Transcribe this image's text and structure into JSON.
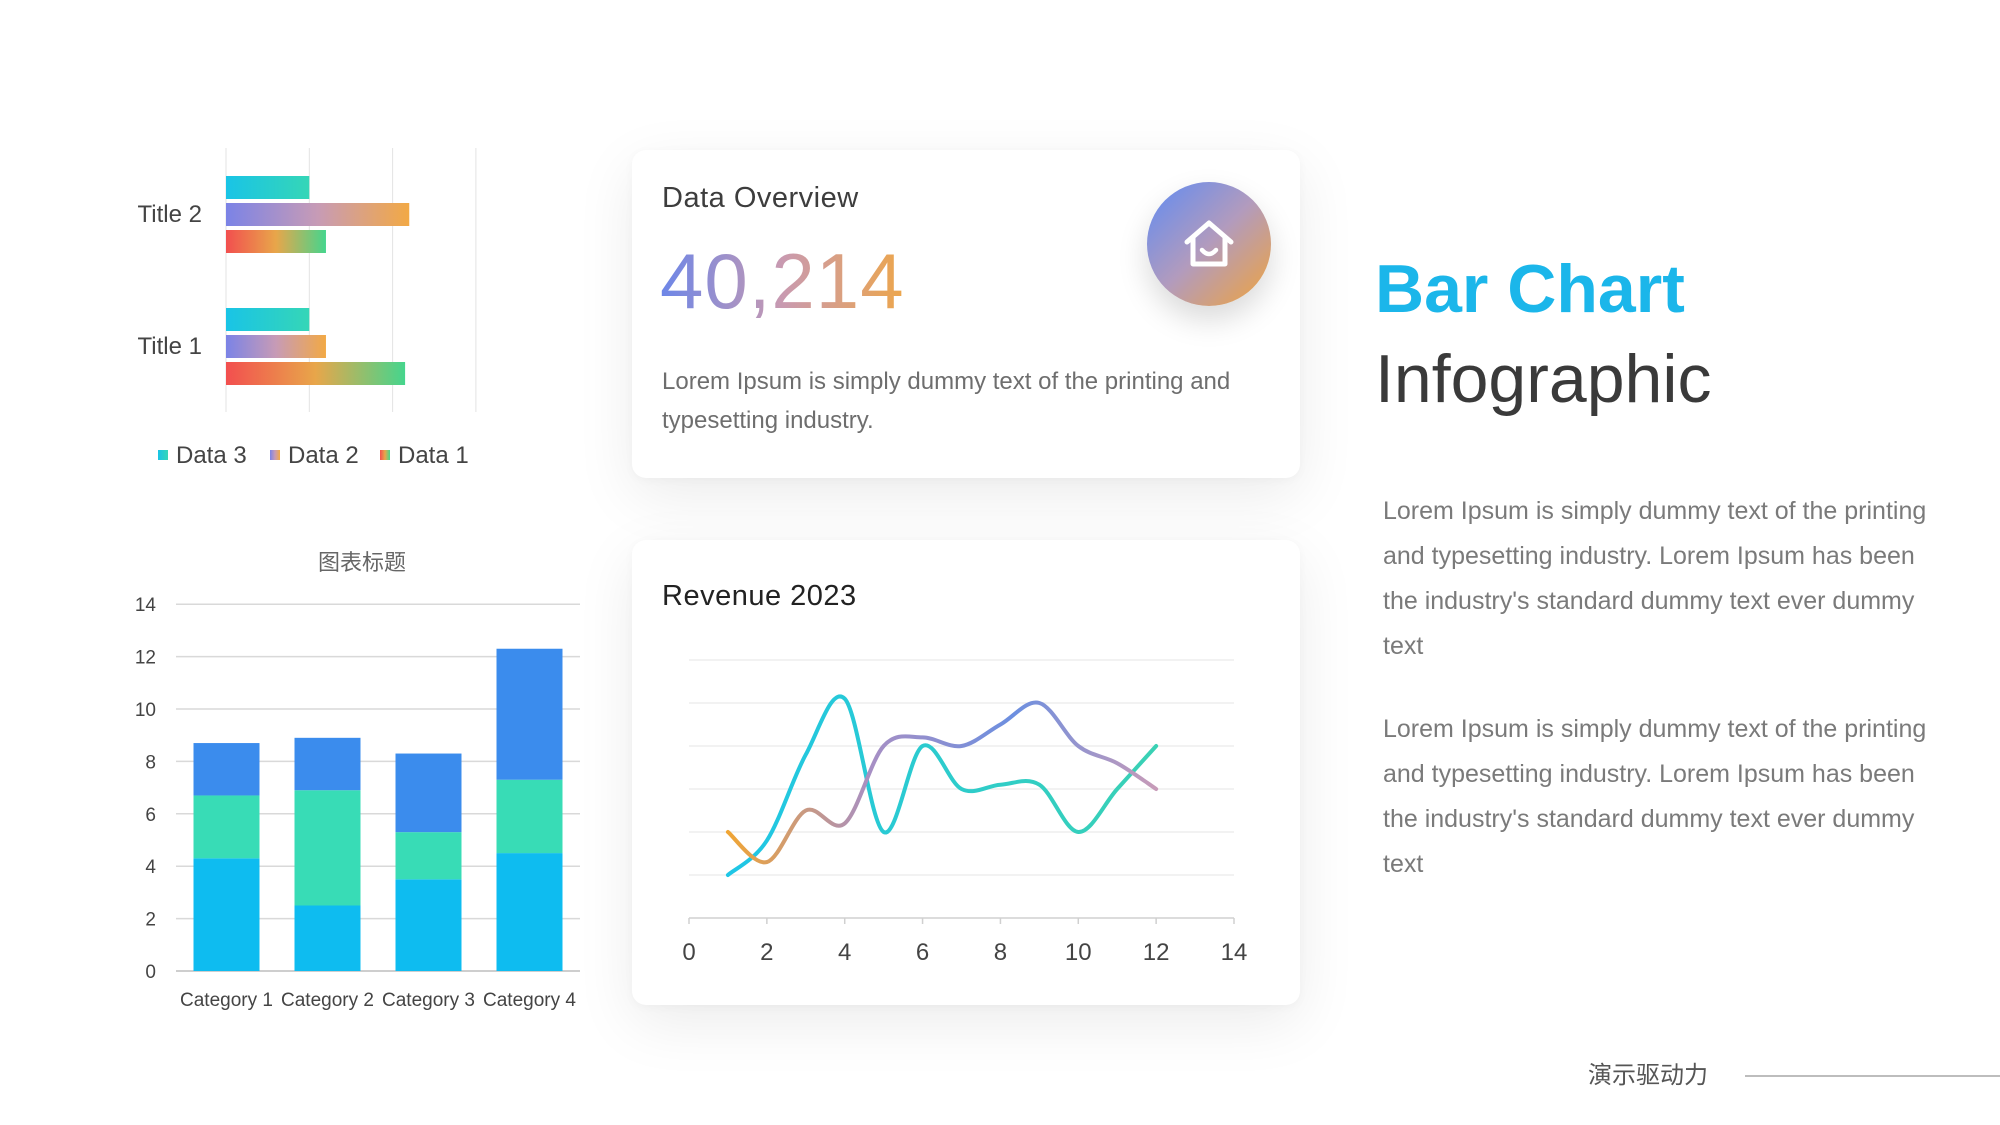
{
  "chart_data": [
    {
      "type": "bar",
      "orientation": "horizontal",
      "categories": [
        "Title 2",
        "Title 1"
      ],
      "series": [
        {
          "name": "Data 3",
          "values": [
            1.0,
            1.0
          ]
        },
        {
          "name": "Data 2",
          "values": [
            2.2,
            1.2
          ]
        },
        {
          "name": "Data 1",
          "values": [
            1.2,
            2.15
          ]
        }
      ],
      "xlim": [
        0,
        3
      ],
      "grid": true,
      "legend": "bottom"
    },
    {
      "type": "bar",
      "stacked": true,
      "title": "图表标题",
      "categories": [
        "Category 1",
        "Category 2",
        "Category 3",
        "Category 4"
      ],
      "series": [
        {
          "values": [
            4.3,
            2.5,
            3.5,
            4.5
          ],
          "color": "#0ebcf0"
        },
        {
          "values": [
            2.4,
            4.4,
            1.8,
            2.8
          ],
          "color": "#38dcb6"
        },
        {
          "values": [
            2.0,
            2.0,
            3.0,
            5.0
          ],
          "color": "#3b8ced"
        }
      ],
      "ylim": [
        0,
        14
      ],
      "yticks": [
        0,
        2,
        4,
        6,
        8,
        10,
        12,
        14
      ],
      "grid": true
    },
    {
      "type": "line",
      "title": "Revenue 2023",
      "xlim": [
        0,
        14
      ],
      "xticks": [
        0,
        2,
        4,
        6,
        8,
        10,
        12,
        14
      ],
      "ylim": [
        0,
        6
      ],
      "grid": true,
      "series": [
        {
          "x": [
            1,
            2,
            3,
            4,
            5,
            6,
            7,
            8,
            9,
            10,
            11,
            12
          ],
          "y": [
            1,
            1.8,
            3.8,
            5.1,
            2,
            4,
            3,
            3.1,
            3.1,
            2,
            3,
            4
          ],
          "colors": [
            "#1fc6e6",
            "#3ad1b4"
          ]
        },
        {
          "x": [
            1,
            2,
            3,
            4,
            5,
            6,
            7,
            8,
            9,
            10,
            11,
            12
          ],
          "y": [
            2,
            1.3,
            2.5,
            2.2,
            4,
            4.2,
            4,
            4.5,
            5,
            4,
            3.6,
            3
          ],
          "colors": [
            "#f0a534",
            "#a78fc4",
            "#6c8fe0",
            "#c79bb8"
          ]
        }
      ]
    }
  ],
  "overview": {
    "title": "Data Overview",
    "value": "40,214",
    "description": "Lorem Ipsum is simply dummy text of the printing and typesetting industry.",
    "icon": "home-icon"
  },
  "revenue": {
    "title": "Revenue 2023"
  },
  "headline": {
    "line1": "Bar Chart",
    "line2": "Infographic"
  },
  "paragraphs": [
    "Lorem Ipsum is simply dummy text of the printing and typesetting industry. Lorem Ipsum has been the industry's standard dummy text ever dummy text",
    "Lorem Ipsum is simply dummy text of the printing and typesetting industry. Lorem Ipsum has been the industry's standard dummy text ever dummy text"
  ],
  "footer": {
    "label": "演示驱动力"
  },
  "colors": {
    "accent": "#1bb6ea",
    "text_dark": "#3a3a3a",
    "text_muted": "#7a7a7a"
  }
}
